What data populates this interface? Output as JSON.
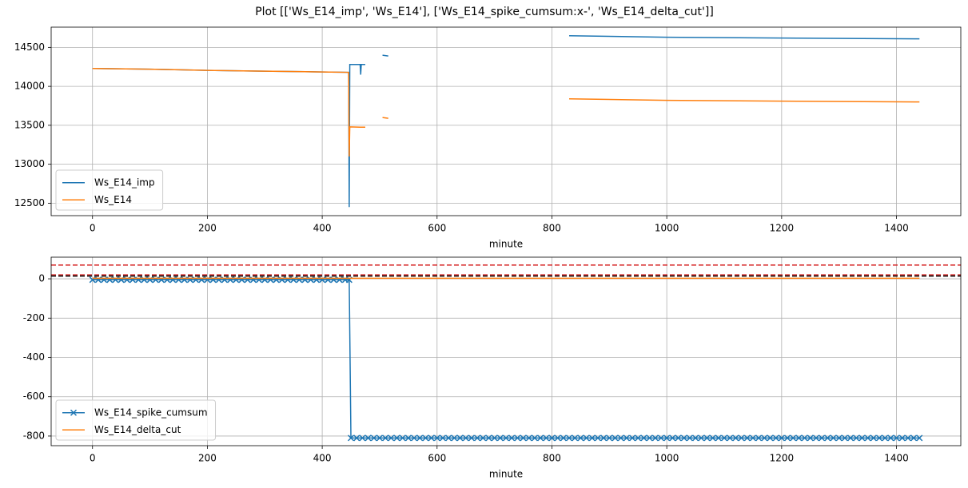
{
  "title": "Plot [['Ws_E14_imp', 'Ws_E14'], ['Ws_E14_spike_cumsum:x-', 'Ws_E14_delta_cut']]",
  "chart_data": [
    {
      "type": "line",
      "xlabel": "minute",
      "grid": true,
      "legend": "lower left",
      "xlim": [
        -72,
        1512
      ],
      "xticks": [
        0,
        200,
        400,
        600,
        800,
        1000,
        1200,
        1400
      ],
      "ylim": [
        12340,
        14760
      ],
      "yticks": [
        12500,
        13000,
        13500,
        14000,
        14500
      ],
      "x": [
        0,
        100,
        200,
        300,
        400,
        446,
        447,
        448,
        449,
        466,
        467,
        468,
        475,
        476,
        505,
        515,
        516,
        830,
        1000,
        1200,
        1440
      ],
      "series": [
        {
          "name": "Ws_E14_imp",
          "color": "#1f77b4",
          "values": [
            14230,
            14220,
            14205,
            14195,
            14185,
            14180,
            12450,
            14280,
            14280,
            14280,
            14150,
            14280,
            14280,
            null,
            14400,
            14390,
            null,
            14650,
            14630,
            14620,
            14610
          ]
        },
        {
          "name": "Ws_E14",
          "color": "#ff7f0e",
          "values": [
            14230,
            14220,
            14205,
            14195,
            14185,
            14180,
            13100,
            13480,
            13480,
            13475,
            13475,
            13475,
            13475,
            null,
            13600,
            13590,
            null,
            13840,
            13820,
            13810,
            13800
          ]
        }
      ]
    },
    {
      "type": "line",
      "xlabel": "minute",
      "grid": true,
      "legend": "lower left",
      "xlim": [
        -72,
        1512
      ],
      "xticks": [
        0,
        200,
        400,
        600,
        800,
        1000,
        1200,
        1400
      ],
      "ylim": [
        -849,
        110
      ],
      "yticks": [
        -800,
        -600,
        -400,
        -200,
        0
      ],
      "hlines": [
        {
          "value": 70,
          "color": "#d62728"
        },
        {
          "value": 20,
          "color": "#d62728"
        },
        {
          "value": 14,
          "color": "#000000"
        }
      ],
      "x": [
        0,
        10,
        20,
        30,
        40,
        50,
        60,
        70,
        80,
        90,
        100,
        110,
        120,
        130,
        140,
        150,
        160,
        170,
        180,
        190,
        200,
        210,
        220,
        230,
        240,
        250,
        260,
        270,
        280,
        290,
        300,
        310,
        320,
        330,
        340,
        350,
        360,
        370,
        380,
        390,
        400,
        410,
        420,
        430,
        440,
        447,
        450,
        460,
        470,
        480,
        490,
        500,
        510,
        520,
        530,
        540,
        550,
        560,
        570,
        580,
        590,
        600,
        610,
        620,
        630,
        640,
        650,
        660,
        670,
        680,
        690,
        700,
        710,
        720,
        730,
        740,
        750,
        760,
        770,
        780,
        790,
        800,
        810,
        820,
        830,
        840,
        850,
        860,
        870,
        880,
        890,
        900,
        910,
        920,
        930,
        940,
        950,
        960,
        970,
        980,
        990,
        1000,
        1010,
        1020,
        1030,
        1040,
        1050,
        1060,
        1070,
        1080,
        1090,
        1100,
        1110,
        1120,
        1130,
        1140,
        1150,
        1160,
        1170,
        1180,
        1190,
        1200,
        1210,
        1220,
        1230,
        1240,
        1250,
        1260,
        1270,
        1280,
        1290,
        1300,
        1310,
        1320,
        1330,
        1340,
        1350,
        1360,
        1370,
        1380,
        1390,
        1400,
        1410,
        1420,
        1430,
        1440
      ],
      "series": [
        {
          "name": "Ws_E14_spike_cumsum",
          "color": "#1f77b4",
          "marker": "x",
          "values": [
            -5,
            -5,
            -5,
            -5,
            -5,
            -5,
            -5,
            -5,
            -5,
            -5,
            -5,
            -5,
            -5,
            -5,
            -5,
            -5,
            -5,
            -5,
            -5,
            -5,
            -5,
            -5,
            -5,
            -5,
            -5,
            -5,
            -5,
            -5,
            -5,
            -5,
            -5,
            -5,
            -5,
            -5,
            -5,
            -5,
            -5,
            -5,
            -5,
            -5,
            -5,
            -5,
            -5,
            -5,
            -5,
            -5,
            -810,
            -810,
            -810,
            -810,
            -810,
            -810,
            -810,
            -810,
            -810,
            -810,
            -810,
            -810,
            -810,
            -810,
            -810,
            -810,
            -810,
            -810,
            -810,
            -810,
            -810,
            -810,
            -810,
            -810,
            -810,
            -810,
            -810,
            -810,
            -810,
            -810,
            -810,
            -810,
            -810,
            -810,
            -810,
            -810,
            -810,
            -810,
            -810,
            -810,
            -810,
            -810,
            -810,
            -810,
            -810,
            -810,
            -810,
            -810,
            -810,
            -810,
            -810,
            -810,
            -810,
            -810,
            -810,
            -810,
            -810,
            -810,
            -810,
            -810,
            -810,
            -810,
            -810,
            -810,
            -810,
            -810,
            -810,
            -810,
            -810,
            -810,
            -810,
            -810,
            -810,
            -810,
            -810,
            -810,
            -810,
            -810,
            -810,
            -810,
            -810,
            -810,
            -810,
            -810,
            -810,
            -810,
            -810,
            -810,
            -810,
            -810,
            -810,
            -810,
            -810,
            -810,
            -810,
            -810,
            -810,
            -810,
            -810,
            -810
          ]
        },
        {
          "name": "Ws_E14_delta_cut",
          "color": "#ff7f0e",
          "values": [
            3,
            3,
            3,
            3,
            3,
            3,
            3,
            3,
            3,
            3,
            3,
            3,
            3,
            3,
            3,
            3,
            3,
            3,
            3,
            3,
            3,
            3,
            3,
            3,
            3,
            3,
            3,
            3,
            3,
            3,
            3,
            3,
            3,
            3,
            3,
            3,
            3,
            3,
            3,
            3,
            3,
            3,
            3,
            3,
            3,
            3,
            3,
            3,
            3,
            3,
            3,
            3,
            3,
            3,
            3,
            3,
            3,
            3,
            3,
            3,
            3,
            3,
            3,
            3,
            3,
            3,
            3,
            3,
            3,
            3,
            3,
            3,
            3,
            3,
            3,
            3,
            3,
            3,
            3,
            3,
            3,
            3,
            3,
            3,
            3,
            3,
            3,
            3,
            3,
            3,
            3,
            3,
            3,
            3,
            3,
            3,
            3,
            3,
            3,
            3,
            3,
            3,
            3,
            3,
            3,
            3,
            3,
            3,
            3,
            3,
            3,
            3,
            3,
            3,
            3,
            3,
            3,
            3,
            3,
            3,
            3,
            3,
            3,
            3,
            3,
            3,
            3,
            3,
            3,
            3,
            3,
            3,
            3,
            3,
            3,
            3,
            3,
            3,
            3,
            3,
            3,
            3,
            3,
            3,
            3,
            3
          ]
        }
      ]
    }
  ]
}
